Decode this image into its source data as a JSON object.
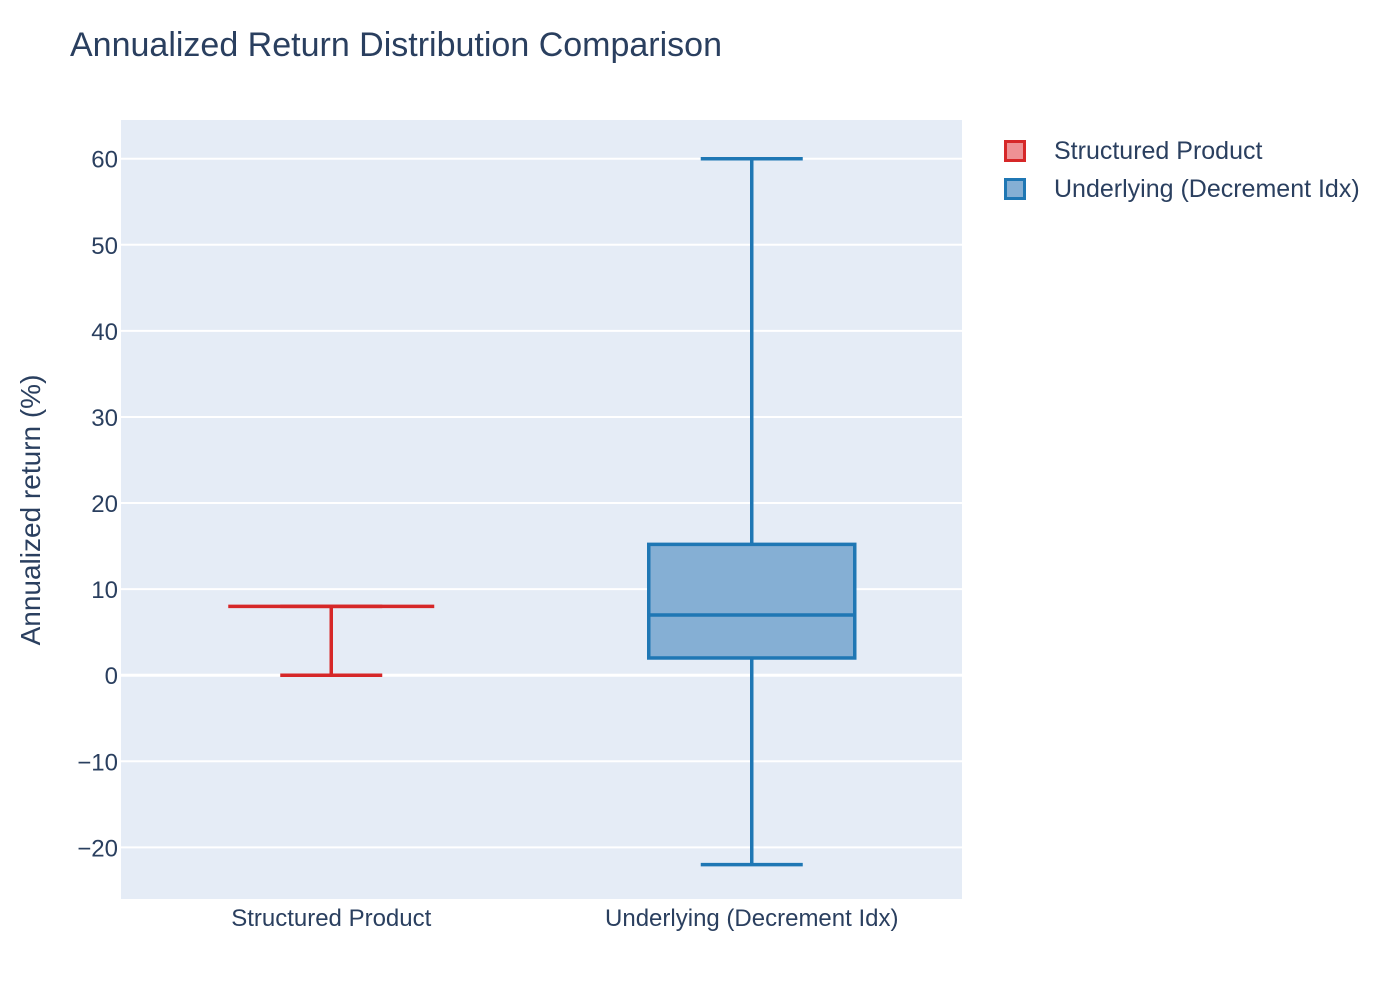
{
  "chart_data": {
    "type": "box",
    "title": "Annualized Return Distribution Comparison",
    "xlabel": "",
    "ylabel": "Annualized return (%)",
    "ylim": [
      -26,
      64.5
    ],
    "yticks": [
      -20,
      -10,
      0,
      10,
      20,
      30,
      40,
      50,
      60
    ],
    "ytick_labels": [
      "−20",
      "−10",
      "0",
      "10",
      "20",
      "30",
      "40",
      "50",
      "60"
    ],
    "grid": true,
    "legend_position": "top-right",
    "categories": [
      "Structured Product",
      "Underlying (Decrement Idx)"
    ],
    "series": [
      {
        "name": "Structured Product",
        "color": "#d62728",
        "fill": "#ee9194",
        "min": 0,
        "q1": 8,
        "median": 8,
        "q3": 8,
        "max": 8
      },
      {
        "name": "Underlying (Decrement Idx)",
        "color": "#1f77b4",
        "fill": "#85afd4",
        "min": -22,
        "q1": 2,
        "median": 7,
        "q3": 15.2,
        "max": 60
      }
    ]
  }
}
